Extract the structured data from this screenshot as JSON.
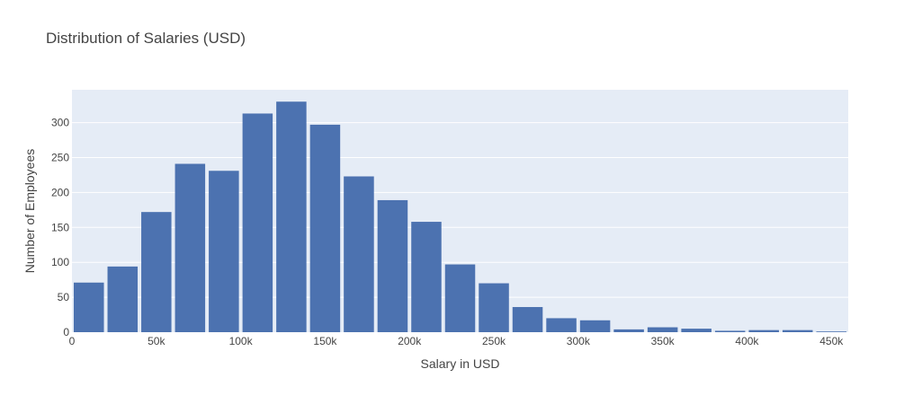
{
  "chart_data": {
    "type": "bar",
    "title": "Distribution of Salaries (USD)",
    "xlabel": "Salary in USD",
    "ylabel": "Number of Employees",
    "bin_width": 20000,
    "bins_start": [
      0,
      20000,
      40000,
      60000,
      80000,
      100000,
      120000,
      140000,
      160000,
      180000,
      200000,
      220000,
      240000,
      260000,
      280000,
      300000,
      320000,
      340000,
      360000,
      380000,
      400000,
      420000,
      440000
    ],
    "values": [
      71,
      94,
      172,
      241,
      231,
      313,
      330,
      297,
      223,
      189,
      158,
      97,
      70,
      36,
      20,
      17,
      4,
      7,
      5,
      2,
      3,
      3,
      1
    ],
    "xlim": [
      0,
      460000
    ],
    "ylim": [
      0,
      347
    ],
    "x_ticks": [
      0,
      50000,
      100000,
      150000,
      200000,
      250000,
      300000,
      350000,
      400000,
      450000
    ],
    "x_tick_labels": [
      "0",
      "50k",
      "100k",
      "150k",
      "200k",
      "250k",
      "300k",
      "350k",
      "400k",
      "450k"
    ],
    "y_ticks": [
      0,
      50,
      100,
      150,
      200,
      250,
      300
    ],
    "y_tick_labels": [
      "0",
      "50",
      "100",
      "150",
      "200",
      "250",
      "300"
    ],
    "grid": true,
    "bar_color": "#4c72b0",
    "plot_background": "#e5ecf6",
    "legend": "none"
  }
}
